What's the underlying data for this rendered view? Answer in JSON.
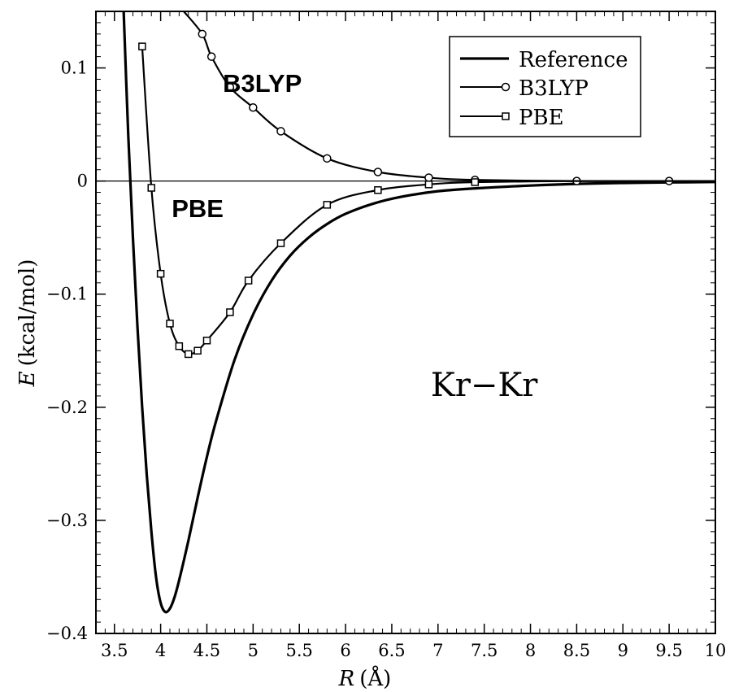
{
  "chart_data": {
    "type": "line",
    "title": "",
    "annotation": "Kr−Kr",
    "xlabel": {
      "var": "R",
      "unit": "(Å)"
    },
    "ylabel": {
      "var": "E",
      "unit": "(kcal/mol)"
    },
    "xlim": [
      3.3,
      10
    ],
    "ylim": [
      -0.4,
      0.15
    ],
    "xticks": [
      3.5,
      4,
      4.5,
      5,
      5.5,
      6,
      6.5,
      7,
      7.5,
      8,
      8.5,
      9,
      9.5,
      10
    ],
    "xtick_labels": [
      "3.5",
      "4",
      "4.5",
      "5",
      "5.5",
      "6",
      "6.5",
      "7",
      "7.5",
      "8",
      "8.5",
      "9",
      "9.5",
      "10"
    ],
    "yticks": [
      -0.4,
      -0.3,
      -0.2,
      -0.1,
      0,
      0.1
    ],
    "ytick_labels": [
      "−0.4",
      "−0.3",
      "−0.2",
      "−0.1",
      "0",
      "0.1"
    ],
    "grid": false,
    "zero_line": true,
    "legend_position": "top-right",
    "series": [
      {
        "name": "Reference",
        "marker": "none",
        "color": "#000000",
        "x": [
          3.6,
          3.65,
          3.7,
          3.75,
          3.8,
          3.85,
          3.9,
          3.95,
          4.0,
          4.05,
          4.1,
          4.15,
          4.2,
          4.3,
          4.4,
          4.5,
          4.6,
          4.8,
          5.0,
          5.2,
          5.4,
          5.6,
          5.8,
          6.0,
          6.3,
          6.6,
          7.0,
          7.5,
          8.0,
          8.5,
          9.0,
          9.5,
          10.0
        ],
        "y": [
          0.15,
          0.04,
          -0.05,
          -0.13,
          -0.2,
          -0.26,
          -0.31,
          -0.35,
          -0.373,
          -0.381,
          -0.378,
          -0.368,
          -0.353,
          -0.318,
          -0.28,
          -0.244,
          -0.212,
          -0.158,
          -0.118,
          -0.088,
          -0.066,
          -0.05,
          -0.038,
          -0.029,
          -0.02,
          -0.014,
          -0.009,
          -0.006,
          -0.004,
          -0.0025,
          -0.0017,
          -0.0012,
          -0.0008
        ]
      },
      {
        "name": "B3LYP",
        "marker": "circle",
        "color": "#000000",
        "x": [
          4.25,
          4.45,
          4.55,
          4.75,
          5.0,
          5.3,
          5.8,
          6.35,
          6.9,
          7.4,
          8.5,
          9.5,
          10.0
        ],
        "y": [
          0.15,
          0.13,
          0.11,
          0.083,
          0.065,
          0.044,
          0.02,
          0.008,
          0.003,
          0.001,
          0.0,
          0.0,
          0.0
        ],
        "marker_x": [
          4.45,
          4.55,
          4.75,
          5.0,
          5.3,
          5.8,
          6.35,
          6.9,
          7.4,
          8.5,
          9.5
        ]
      },
      {
        "name": "PBE",
        "marker": "square",
        "color": "#000000",
        "x": [
          3.8,
          3.9,
          4.0,
          4.1,
          4.2,
          4.3,
          4.4,
          4.5,
          4.75,
          4.95,
          5.3,
          5.8,
          6.35,
          6.9,
          7.4,
          8.5,
          9.5,
          10.0
        ],
        "y": [
          0.119,
          -0.006,
          -0.082,
          -0.126,
          -0.146,
          -0.153,
          -0.15,
          -0.141,
          -0.116,
          -0.088,
          -0.055,
          -0.021,
          -0.008,
          -0.003,
          -0.001,
          0.0,
          0.0,
          0.0
        ],
        "marker_x": [
          3.8,
          3.9,
          4.0,
          4.1,
          4.2,
          4.3,
          4.4,
          4.5,
          4.75,
          4.95,
          5.3,
          5.8,
          6.35,
          6.9,
          7.4
        ]
      }
    ],
    "series_labels": [
      {
        "text": "B3LYP",
        "x": 5.1,
        "y": 0.079
      },
      {
        "text": "PBE",
        "x": 4.4,
        "y": -0.032
      }
    ],
    "annotation_position": {
      "x": 7.5,
      "y": -0.19
    }
  }
}
